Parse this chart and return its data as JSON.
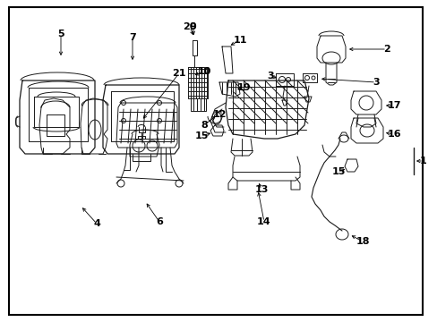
{
  "background_color": "#ffffff",
  "border_color": "#000000",
  "line_color": "#1a1a1a",
  "text_color": "#000000",
  "fig_width": 4.89,
  "fig_height": 3.6,
  "dpi": 100
}
